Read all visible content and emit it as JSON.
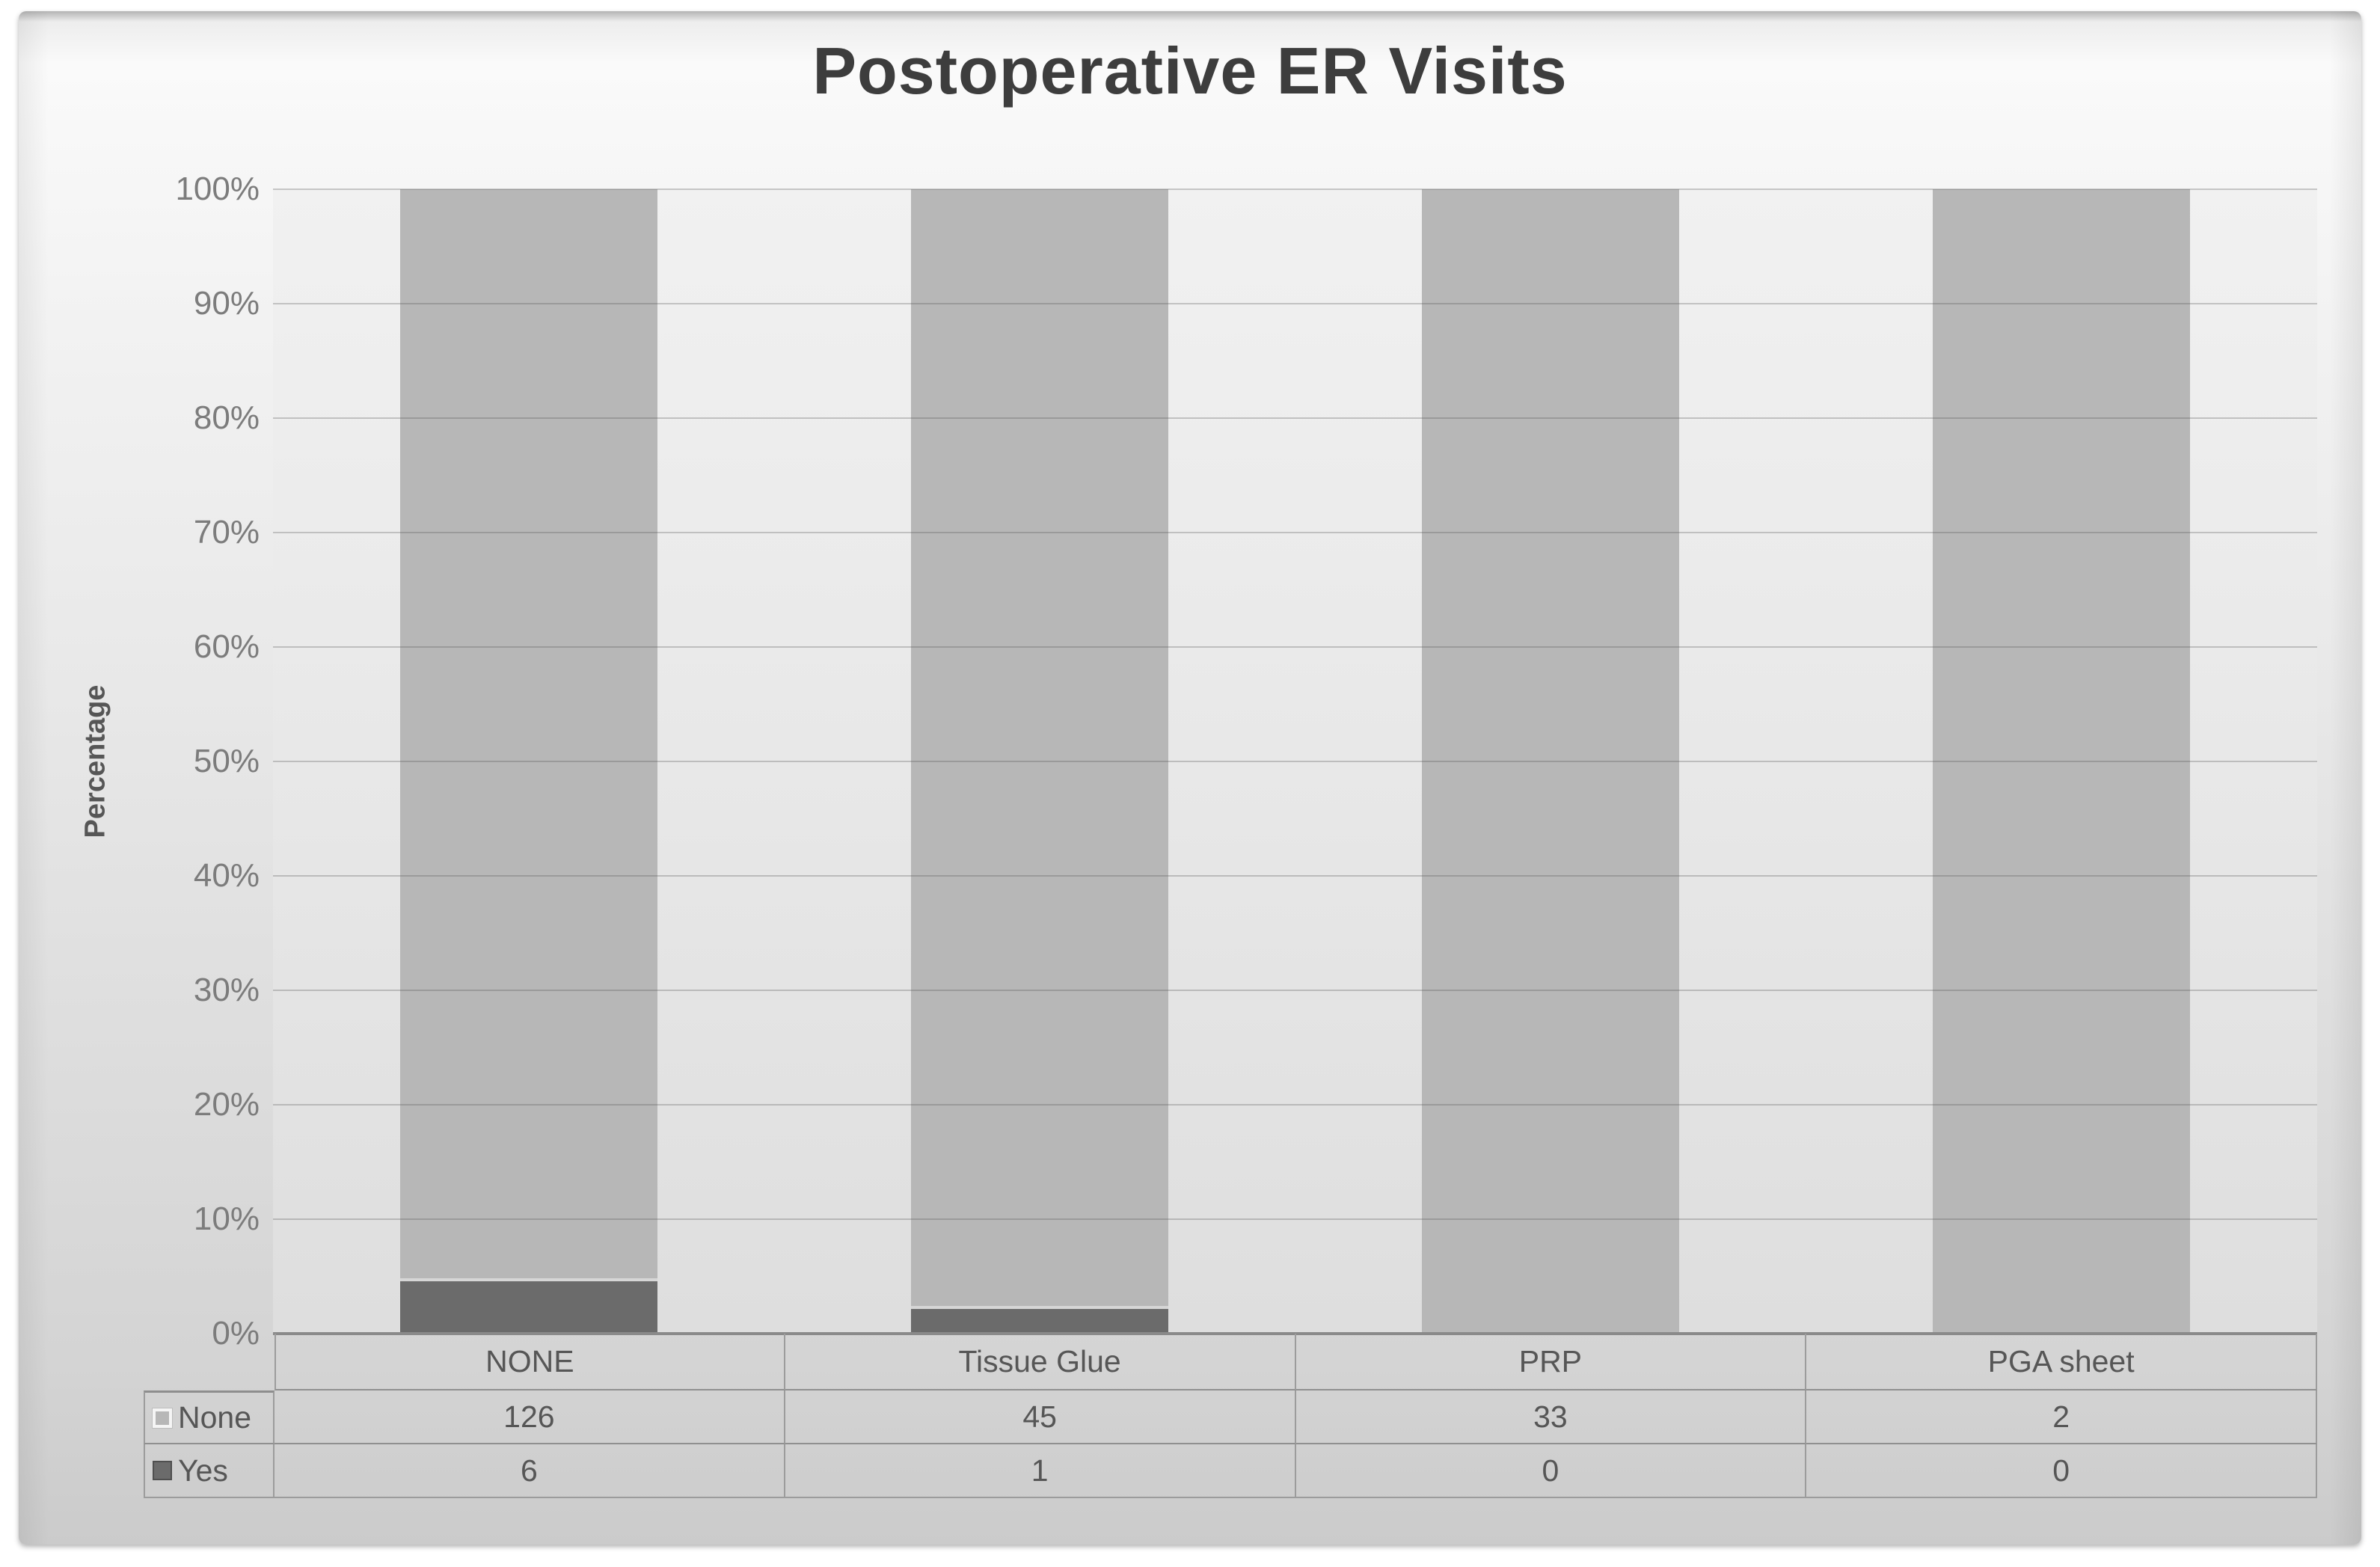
{
  "chart_data": {
    "type": "bar",
    "variant": "100-percent-stacked-column",
    "title": "Postoperative ER Visits",
    "xlabel": "",
    "ylabel": "Percentage",
    "categories": [
      "NONE",
      "Tissue Glue",
      "PRP",
      "PGA sheet"
    ],
    "series": [
      {
        "name": "None",
        "values": [
          126,
          45,
          33,
          2
        ],
        "color": "#b7b7b7",
        "swatch_style": "light"
      },
      {
        "name": "Yes",
        "values": [
          6,
          1,
          0,
          0
        ],
        "color": "#6b6b6b",
        "swatch_style": "dark"
      }
    ],
    "stack_order_bottom_to_top": [
      "Yes",
      "None"
    ],
    "y_ticks": [
      "0%",
      "10%",
      "20%",
      "30%",
      "40%",
      "50%",
      "60%",
      "70%",
      "80%",
      "90%",
      "100%"
    ],
    "ylim": [
      0,
      100
    ],
    "grid": true,
    "legend_position": "table-rows-left",
    "data_table_shown": true
  },
  "colors": {
    "gridline": "rgba(90,90,90,0.30)",
    "axis_line": "#8a8a8a",
    "title_text": "#3d3d3d",
    "tick_text": "#7c7c7c",
    "table_text": "#565656",
    "table_border": "#9c9c9c",
    "segment_divider": "#d6d6d6"
  }
}
